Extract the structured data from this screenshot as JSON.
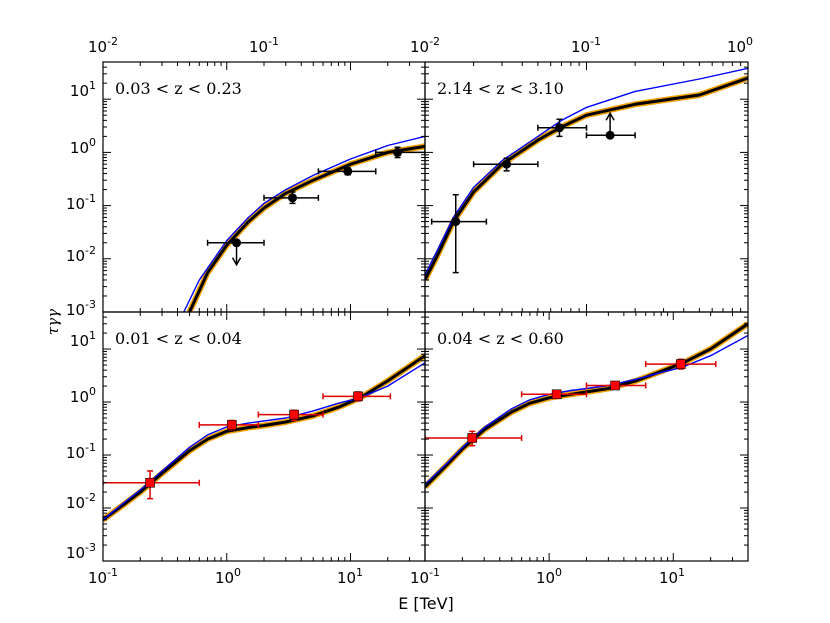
{
  "figure": {
    "xlabel": "E [TeV]",
    "ylabel": "τγγ",
    "top_ticks": [
      "10-2",
      "10-1",
      "10-2",
      "10-1",
      "100"
    ],
    "bottom_ticks": [
      "10-1",
      "100",
      "101",
      "10-1",
      "100",
      "101"
    ],
    "y_ticks": [
      "101",
      "100",
      "10-1",
      "10-2",
      "10-3"
    ]
  },
  "chart_data": [
    {
      "type": "line",
      "panel": "top-left",
      "label": "0.03 < z < 0.23",
      "xscale": "log",
      "yscale": "log",
      "xlim": [
        0.1,
        40
      ],
      "ylim": [
        0.001,
        50
      ],
      "series": [
        {
          "name": "model band",
          "color": "#000000",
          "x": [
            0.5,
            0.7,
            1,
            1.5,
            2,
            3,
            5,
            10,
            20,
            40
          ],
          "y": [
            0.001,
            0.0055,
            0.018,
            0.05,
            0.09,
            0.17,
            0.3,
            0.6,
            1.0,
            1.3
          ]
        },
        {
          "name": "blue model",
          "color": "#0000ff",
          "x": [
            0.45,
            0.6,
            1,
            1.5,
            2,
            3,
            5,
            10,
            20,
            40
          ],
          "y": [
            0.001,
            0.004,
            0.022,
            0.06,
            0.11,
            0.2,
            0.37,
            0.75,
            1.35,
            2.0
          ]
        }
      ],
      "points": [
        {
          "x": 1.2,
          "y": 0.02,
          "xerr": [
            0.7,
            2.0
          ],
          "yerr": null,
          "upper_limit": true
        },
        {
          "x": 3.4,
          "y": 0.14,
          "xerr": [
            2.0,
            5.5
          ],
          "yerr": [
            0.11,
            0.18
          ],
          "upper_limit": false
        },
        {
          "x": 9.5,
          "y": 0.44,
          "xerr": [
            5.5,
            16
          ],
          "yerr": [
            0.38,
            0.52
          ],
          "upper_limit": false
        },
        {
          "x": 24,
          "y": 1.0,
          "xerr": [
            16,
            40
          ],
          "yerr": [
            0.8,
            1.25
          ],
          "upper_limit": false
        }
      ]
    },
    {
      "type": "line",
      "panel": "top-right",
      "label": "2.14 < z < 3.10",
      "xscale": "log",
      "yscale": "log",
      "xlim": [
        0.01,
        1
      ],
      "ylim": [
        0.001,
        50
      ],
      "series": [
        {
          "name": "model band",
          "color": "#000000",
          "x": [
            0.01,
            0.012,
            0.015,
            0.02,
            0.03,
            0.05,
            0.07,
            0.1,
            0.2,
            0.5,
            1.0
          ],
          "y": [
            0.004,
            0.012,
            0.05,
            0.18,
            0.6,
            1.7,
            3.0,
            5.0,
            8.0,
            12.0,
            25.0
          ]
        },
        {
          "name": "blue model",
          "color": "#0000ff",
          "x": [
            0.01,
            0.012,
            0.015,
            0.02,
            0.03,
            0.05,
            0.07,
            0.1,
            0.2,
            0.5,
            1.0
          ],
          "y": [
            0.005,
            0.015,
            0.06,
            0.22,
            0.7,
            2.0,
            4.0,
            7.0,
            14.0,
            24.0,
            38.0
          ]
        }
      ],
      "points": [
        {
          "x": 0.0155,
          "y": 0.05,
          "xerr": [
            0.011,
            0.024
          ],
          "yerr": [
            0.0055,
            0.16
          ],
          "upper_limit": false
        },
        {
          "x": 0.032,
          "y": 0.6,
          "xerr": [
            0.02,
            0.05
          ],
          "yerr": [
            0.45,
            0.78
          ],
          "upper_limit": false
        },
        {
          "x": 0.068,
          "y": 2.9,
          "xerr": [
            0.05,
            0.1
          ],
          "yerr": [
            2.0,
            4.2
          ],
          "upper_limit": false
        },
        {
          "x": 0.14,
          "y": 2.1,
          "xerr": [
            0.1,
            0.2
          ],
          "yerr": null,
          "lower_limit": true
        }
      ]
    },
    {
      "type": "line",
      "panel": "bottom-left",
      "label": "0.01 < z < 0.04",
      "xscale": "log",
      "yscale": "log",
      "xlim": [
        0.1,
        40
      ],
      "ylim": [
        0.001,
        50
      ],
      "series": [
        {
          "name": "model band",
          "color": "#000000",
          "x": [
            0.1,
            0.15,
            0.2,
            0.3,
            0.5,
            0.7,
            1,
            1.5,
            2,
            3,
            5,
            8,
            12,
            20,
            40
          ],
          "y": [
            0.006,
            0.012,
            0.02,
            0.045,
            0.12,
            0.2,
            0.28,
            0.33,
            0.36,
            0.42,
            0.55,
            0.8,
            1.2,
            2.5,
            7.5
          ]
        },
        {
          "name": "blue model",
          "color": "#0000ff",
          "x": [
            0.1,
            0.15,
            0.2,
            0.3,
            0.5,
            0.7,
            1,
            1.5,
            2,
            3,
            5,
            8,
            12,
            20,
            40
          ],
          "y": [
            0.006,
            0.013,
            0.022,
            0.05,
            0.14,
            0.24,
            0.34,
            0.4,
            0.44,
            0.5,
            0.68,
            0.95,
            1.2,
            2.0,
            5.5
          ]
        }
      ],
      "points": [
        {
          "x": 0.24,
          "y": 0.03,
          "xerr": [
            0.1,
            0.6
          ],
          "yerr": [
            0.015,
            0.05
          ],
          "upper_limit": false
        },
        {
          "x": 1.1,
          "y": 0.37,
          "xerr": [
            0.6,
            1.8
          ],
          "yerr": [
            0.3,
            0.45
          ],
          "upper_limit": false
        },
        {
          "x": 3.5,
          "y": 0.58,
          "xerr": [
            1.8,
            6
          ],
          "yerr": [
            0.45,
            0.7
          ],
          "upper_limit": false
        },
        {
          "x": 11.5,
          "y": 1.28,
          "xerr": [
            6,
            21
          ],
          "yerr": [
            1.05,
            1.55
          ],
          "upper_limit": false
        }
      ]
    },
    {
      "type": "line",
      "panel": "bottom-right",
      "label": "0.04 < z < 0.60",
      "xscale": "log",
      "yscale": "log",
      "xlim": [
        0.1,
        40
      ],
      "ylim": [
        0.001,
        50
      ],
      "series": [
        {
          "name": "model band",
          "color": "#000000",
          "x": [
            0.1,
            0.15,
            0.2,
            0.3,
            0.5,
            0.7,
            1,
            1.5,
            2,
            3,
            5,
            8,
            12,
            20,
            40
          ],
          "y": [
            0.025,
            0.065,
            0.13,
            0.3,
            0.65,
            0.95,
            1.2,
            1.4,
            1.55,
            1.8,
            2.5,
            3.8,
            5.5,
            10,
            30
          ]
        },
        {
          "name": "blue model",
          "color": "#0000ff",
          "x": [
            0.1,
            0.15,
            0.2,
            0.3,
            0.5,
            0.7,
            1,
            1.5,
            2,
            3,
            5,
            8,
            12,
            20,
            40
          ],
          "y": [
            0.028,
            0.07,
            0.14,
            0.33,
            0.75,
            1.1,
            1.4,
            1.65,
            1.8,
            2.05,
            2.7,
            3.6,
            4.6,
            7.5,
            18
          ]
        }
      ],
      "points": [
        {
          "x": 0.24,
          "y": 0.21,
          "xerr": [
            0.1,
            0.6
          ],
          "yerr": [
            0.15,
            0.28
          ],
          "upper_limit": false
        },
        {
          "x": 1.15,
          "y": 1.4,
          "xerr": [
            0.6,
            2
          ],
          "yerr": [
            1.2,
            1.6
          ],
          "upper_limit": false
        },
        {
          "x": 3.4,
          "y": 2.05,
          "xerr": [
            2,
            6
          ],
          "yerr": [
            1.8,
            2.3
          ],
          "upper_limit": false
        },
        {
          "x": 11.5,
          "y": 5.2,
          "xerr": [
            6,
            22
          ],
          "yerr": [
            4.2,
            6.4
          ],
          "upper_limit": false
        }
      ]
    }
  ]
}
